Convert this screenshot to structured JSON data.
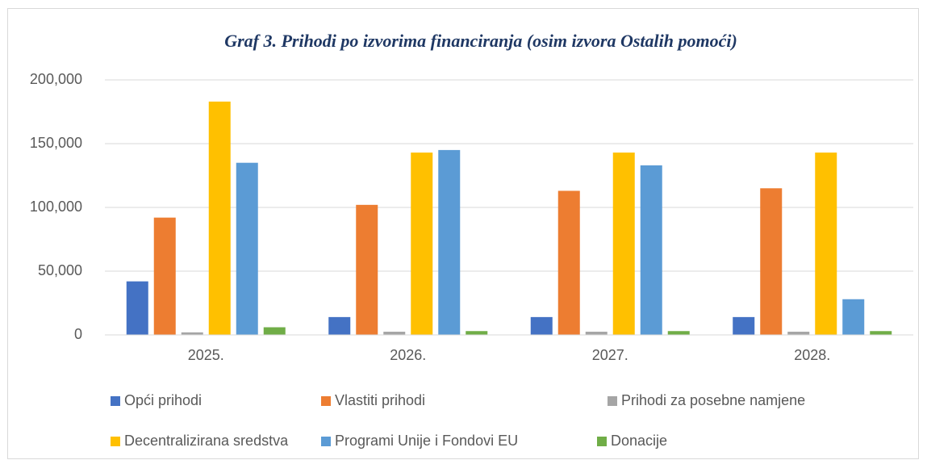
{
  "chart_data": {
    "type": "bar",
    "title": "Graf 3. Prihodi po izvorima financiranja (osim izvora Ostalih pomoći)",
    "categories": [
      "2025.",
      "2026.",
      "2027.",
      "2028."
    ],
    "series": [
      {
        "name": "Opći prihodi",
        "color": "#4472c4",
        "values": [
          42000,
          14000,
          14000,
          14000
        ]
      },
      {
        "name": "Vlastiti prihodi",
        "color": "#ed7d31",
        "values": [
          92000,
          102000,
          113000,
          115000
        ]
      },
      {
        "name": "Prihodi za posebne namjene",
        "color": "#a5a5a5",
        "values": [
          2000,
          2500,
          2500,
          2500
        ]
      },
      {
        "name": "Decentralizirana sredstva",
        "color": "#ffc000",
        "values": [
          183000,
          143000,
          143000,
          143000
        ]
      },
      {
        "name": "Programi Unije i Fondovi EU",
        "color": "#5b9bd5",
        "values": [
          135000,
          145000,
          133000,
          28000
        ]
      },
      {
        "name": "Donacije",
        "color": "#70ad47",
        "values": [
          6000,
          3000,
          3000,
          3000
        ]
      }
    ],
    "ylim": [
      0,
      200000
    ],
    "yticks": [
      0,
      {
        "value": 50000,
        "label": "50,000"
      },
      {
        "value": 100000,
        "label": "100,000"
      },
      {
        "value": 150000,
        "label": "150,000"
      },
      {
        "value": 200000,
        "label": "200,000"
      }
    ],
    "grid": true,
    "legend": "bottom"
  }
}
